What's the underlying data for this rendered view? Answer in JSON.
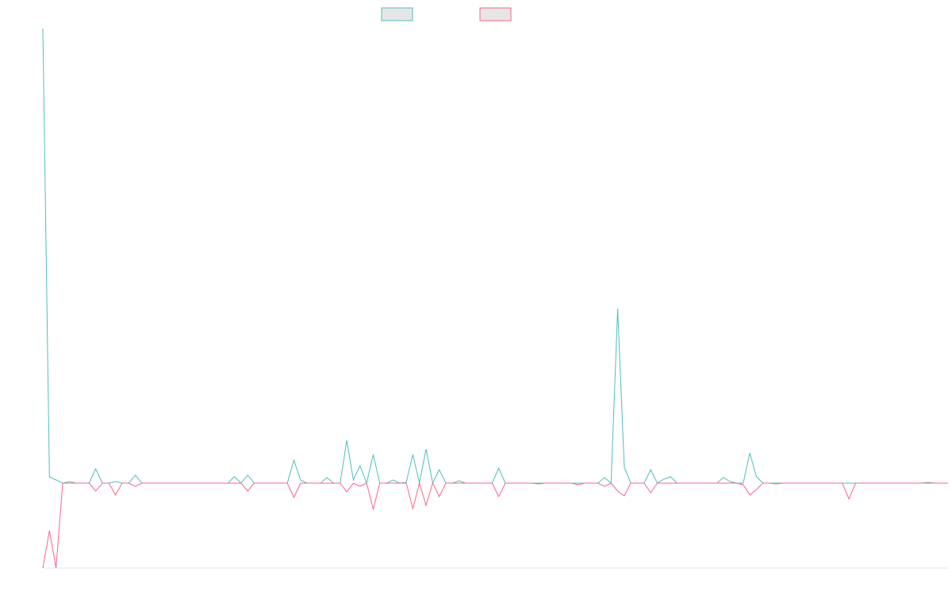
{
  "chart_data": {
    "type": "line",
    "ylim": [
      -107,
      573
    ],
    "series": [
      {
        "color": "#4bc0c0",
        "values": [
          573,
          8,
          4,
          0,
          2,
          0,
          0,
          0,
          18,
          0,
          0,
          2,
          0,
          0,
          10,
          0,
          0,
          0,
          0,
          0,
          0,
          0,
          0,
          0,
          0,
          0,
          0,
          0,
          0,
          8,
          0,
          10,
          0,
          0,
          0,
          0,
          0,
          0,
          29,
          4,
          0,
          0,
          0,
          7,
          0,
          0,
          54,
          4,
          22,
          0,
          36,
          0,
          0,
          4,
          0,
          1,
          36,
          0,
          43,
          0,
          17,
          0,
          0,
          3,
          0,
          0,
          0,
          0,
          0,
          19,
          0,
          0,
          0,
          0,
          0,
          0,
          0,
          0,
          0,
          0,
          0,
          0,
          0,
          0,
          0,
          7,
          0,
          220,
          20,
          0,
          0,
          0,
          17,
          0,
          5,
          8,
          0,
          0,
          0,
          0,
          0,
          0,
          0,
          7,
          2,
          0,
          0,
          38,
          8,
          0,
          0,
          0,
          0,
          0,
          0,
          0,
          0,
          0,
          0,
          0,
          0,
          0,
          0,
          0,
          0,
          0,
          0,
          0,
          0,
          0,
          0,
          0,
          0,
          0,
          1,
          0,
          0,
          0
        ]
      },
      {
        "color": "#ff6384",
        "values": [
          -107,
          -60,
          -107,
          0,
          0,
          0,
          0,
          0,
          -10,
          0,
          0,
          -15,
          0,
          0,
          -4,
          0,
          0,
          0,
          0,
          0,
          0,
          0,
          0,
          0,
          0,
          0,
          0,
          0,
          0,
          0,
          0,
          -10,
          0,
          0,
          0,
          0,
          0,
          0,
          -18,
          0,
          0,
          0,
          0,
          0,
          0,
          0,
          -11,
          0,
          -4,
          0,
          -33,
          0,
          0,
          0,
          0,
          0,
          -32,
          0,
          -28,
          0,
          -17,
          0,
          0,
          0,
          0,
          0,
          0,
          0,
          0,
          -17,
          0,
          0,
          0,
          0,
          0,
          -1,
          0,
          0,
          0,
          0,
          0,
          -2,
          0,
          0,
          0,
          -4,
          0,
          -10,
          -16,
          0,
          0,
          0,
          -12,
          0,
          0,
          0,
          0,
          0,
          0,
          0,
          0,
          0,
          0,
          0,
          0,
          0,
          -2,
          -15,
          -8,
          0,
          0,
          -1,
          0,
          0,
          0,
          0,
          0,
          0,
          0,
          0,
          0,
          0,
          -20,
          0,
          0,
          0,
          0,
          0,
          0,
          0,
          0,
          0,
          0,
          0,
          0,
          0,
          0,
          0
        ]
      }
    ]
  }
}
